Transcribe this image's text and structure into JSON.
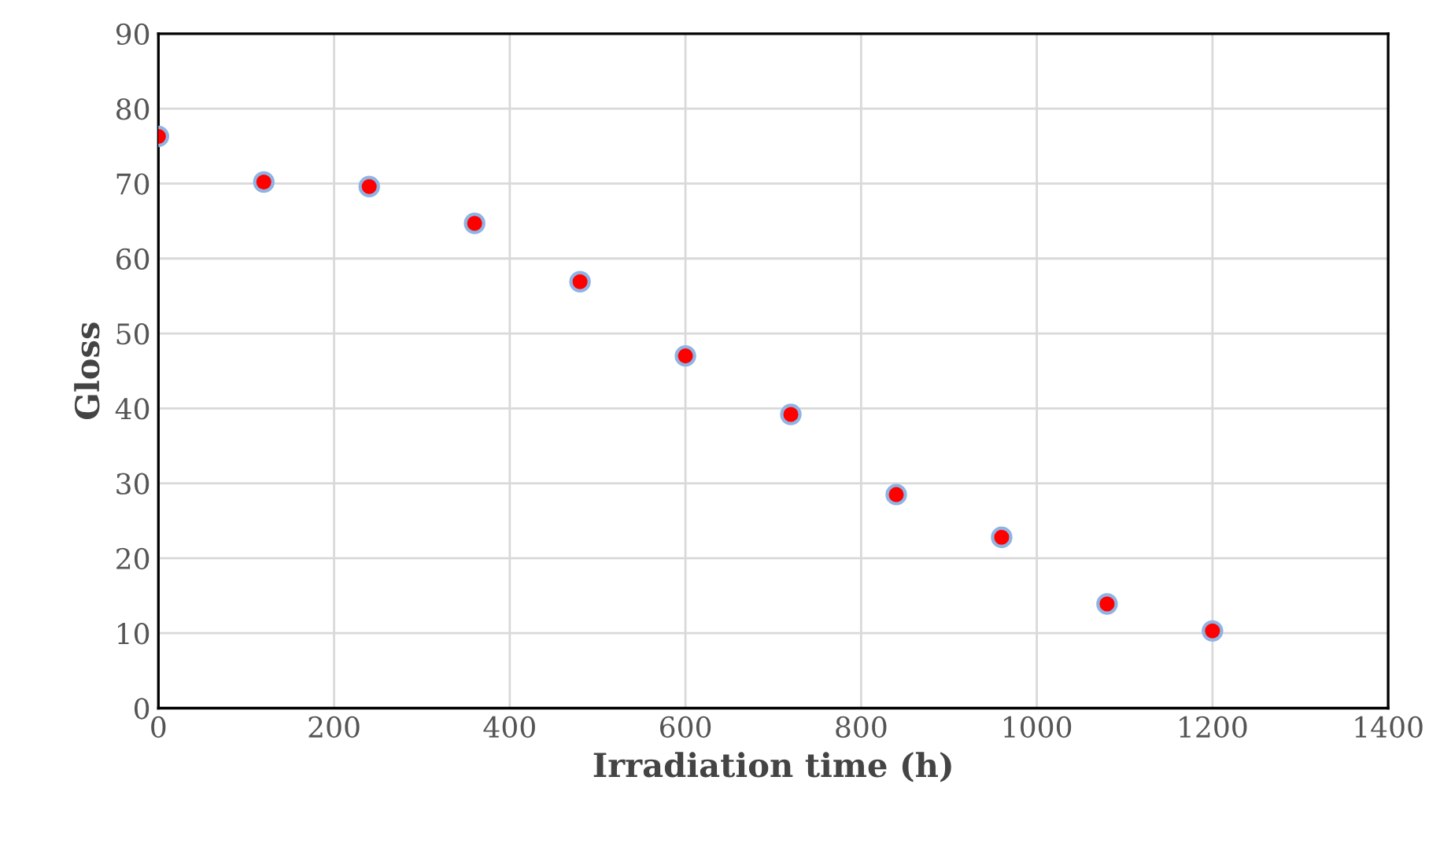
{
  "chart_data": {
    "type": "scatter",
    "xlabel": "Irradiation time (h)",
    "ylabel": "Gloss",
    "x": [
      0,
      120,
      240,
      360,
      480,
      600,
      720,
      840,
      960,
      1080,
      1200
    ],
    "series": [
      {
        "color": "#ff0000",
        "values": [
          76.3,
          70.2,
          69.6,
          64.7,
          56.9,
          47.0,
          39.2,
          28.5,
          22.8,
          13.9,
          10.3
        ]
      }
    ],
    "xlim": [
      0,
      1400
    ],
    "xticks": [
      0,
      200,
      400,
      600,
      800,
      1000,
      1200,
      1400
    ],
    "ylim": [
      0,
      90
    ],
    "yticks": [
      0,
      10,
      20,
      30,
      40,
      50,
      60,
      70,
      80,
      90
    ],
    "grid": true,
    "marker": "circle",
    "legend": false
  }
}
